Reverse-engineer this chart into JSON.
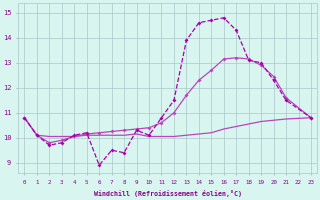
{
  "xlabel": "Windchill (Refroidissement éolien,°C)",
  "x_values": [
    0,
    1,
    2,
    3,
    4,
    5,
    6,
    7,
    8,
    9,
    10,
    11,
    12,
    13,
    14,
    15,
    16,
    17,
    18,
    19,
    20,
    21,
    22,
    23
  ],
  "line1": [
    10.8,
    10.1,
    9.7,
    9.8,
    10.1,
    10.2,
    8.9,
    9.5,
    9.4,
    10.3,
    10.1,
    10.8,
    11.5,
    13.9,
    14.6,
    14.7,
    14.8,
    14.3,
    13.1,
    13.0,
    12.3,
    11.5,
    null,
    10.8
  ],
  "line2": [
    10.8,
    10.1,
    9.8,
    9.9,
    10.05,
    10.15,
    10.2,
    10.25,
    10.3,
    10.35,
    10.4,
    10.6,
    11.0,
    11.7,
    12.3,
    12.7,
    13.15,
    13.2,
    13.15,
    12.9,
    12.45,
    11.6,
    null,
    10.8
  ],
  "line3": [
    10.8,
    10.1,
    10.05,
    10.05,
    10.05,
    10.1,
    10.1,
    10.1,
    10.1,
    10.15,
    10.05,
    10.05,
    10.05,
    10.1,
    10.15,
    10.2,
    10.35,
    10.45,
    10.55,
    10.65,
    10.7,
    10.75,
    null,
    10.8
  ],
  "ylim": [
    8.6,
    15.4
  ],
  "yticks": [
    9,
    10,
    11,
    12,
    13,
    14,
    15
  ],
  "xticks": [
    0,
    1,
    2,
    3,
    4,
    5,
    6,
    7,
    8,
    9,
    10,
    11,
    12,
    13,
    14,
    15,
    16,
    17,
    18,
    19,
    20,
    21,
    22,
    23
  ],
  "line_color1": "#aa00aa",
  "line_color2": "#bb44bb",
  "line_color3": "#bb44bb",
  "bg_color": "#d8f5f0",
  "grid_color": "#a8c8c8",
  "tick_color": "#880088",
  "label_color": "#880088"
}
